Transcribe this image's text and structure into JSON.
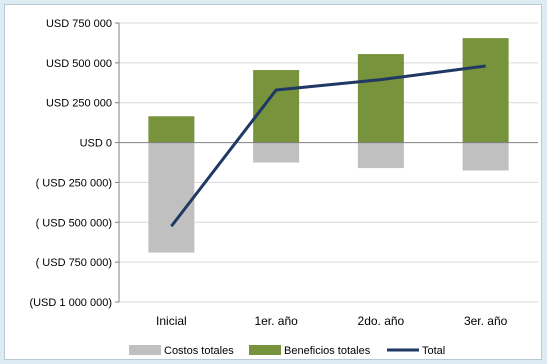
{
  "chart_data": {
    "type": "bar",
    "title": "",
    "xlabel": "",
    "ylabel": "",
    "categories": [
      "Inicial",
      "1er. año",
      "2do. año",
      "3er. año"
    ],
    "ylim": [
      -1000000,
      750000
    ],
    "yticks": [
      750000,
      500000,
      250000,
      0,
      -250000,
      -500000,
      -750000,
      -1000000
    ],
    "ytick_labels": [
      "USD 750 000",
      "USD 500 000",
      "USD 250 000",
      "USD 0",
      "( USD 250 000)",
      "( USD 500 000)",
      "( USD 750 000)",
      "(USD 1 000 000)"
    ],
    "grid": true,
    "legend_position": "bottom",
    "stacked": true,
    "series": [
      {
        "name": "Costos totales",
        "type": "bar",
        "color": "#c0c0c0",
        "values": [
          -690000,
          -125000,
          -160000,
          -175000
        ]
      },
      {
        "name": "Beneficios totales",
        "type": "bar",
        "color": "#77933c",
        "values": [
          165000,
          455000,
          555000,
          655000
        ]
      },
      {
        "name": "Total",
        "type": "line",
        "color": "#1f3864",
        "values": [
          -525000,
          330000,
          395000,
          480000
        ]
      }
    ]
  }
}
